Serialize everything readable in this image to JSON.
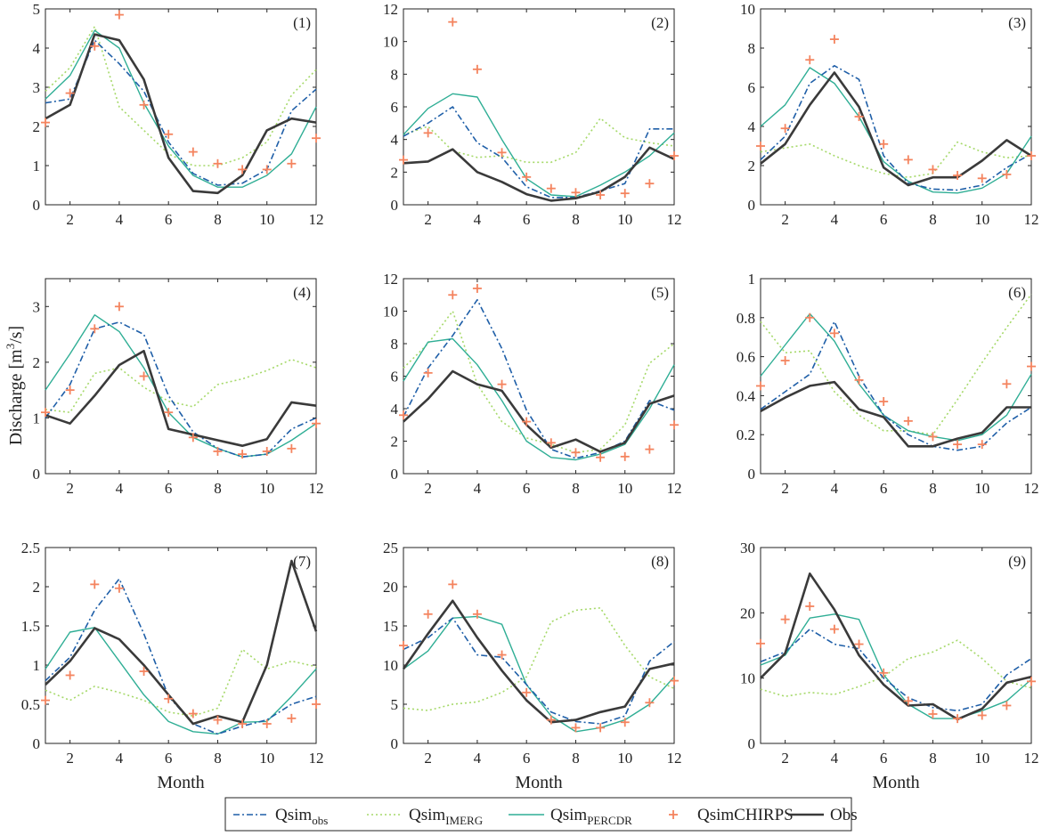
{
  "colors": {
    "Qsim_obs": "#1f5fa8",
    "Qsim_IMERG": "#a6d96a",
    "Qsim_PERCDR": "#2fae95",
    "QsimCHIRPS": "#f4845f",
    "Obs": "#3a3a3a"
  },
  "figure": {
    "ylabel": "Discharge [m",
    "ylabel_sup": "3",
    "ylabel_tail": "/s]",
    "xlabel": "Month"
  },
  "legend": [
    {
      "key": "Qsim_obs",
      "main": "Qsim",
      "sub": "obs",
      "style": "dashdot"
    },
    {
      "key": "Qsim_IMERG",
      "main": "Qsim",
      "sub": "IMERG",
      "style": "dotted"
    },
    {
      "key": "Qsim_PERCDR",
      "main": "Qsim",
      "sub": "PERCDR",
      "style": "solid-thin"
    },
    {
      "key": "QsimCHIRPS",
      "main": "QsimCHIRPS",
      "sub": "",
      "style": "plus"
    },
    {
      "key": "Obs",
      "main": "Obs",
      "sub": "",
      "style": "solid-thick"
    }
  ],
  "chart_data": [
    {
      "type": "line",
      "label": "(1)",
      "x": [
        1,
        2,
        3,
        4,
        5,
        6,
        7,
        8,
        9,
        10,
        11,
        12
      ],
      "ylim": [
        0,
        5
      ],
      "yticks": [
        0,
        1,
        2,
        3,
        4,
        5
      ],
      "ytick_labels": [
        "0",
        "1",
        "2",
        "3",
        "4",
        "5"
      ],
      "xticks": [
        2,
        4,
        6,
        8,
        10,
        12
      ],
      "xlabel": "",
      "ylabel": "",
      "series": [
        {
          "name": "Qsim_obs",
          "values": [
            2.6,
            2.7,
            4.2,
            3.6,
            2.9,
            1.6,
            0.8,
            0.5,
            0.55,
            0.9,
            2.4,
            2.95
          ]
        },
        {
          "name": "Qsim_IMERG",
          "values": [
            2.9,
            3.5,
            4.55,
            2.5,
            1.9,
            1.3,
            1.0,
            1.0,
            1.2,
            1.6,
            2.8,
            3.45
          ]
        },
        {
          "name": "Qsim_PERCDR",
          "values": [
            2.7,
            3.3,
            4.45,
            4.0,
            2.6,
            1.5,
            0.75,
            0.45,
            0.45,
            0.75,
            1.3,
            2.5
          ]
        },
        {
          "name": "QsimCHIRPS",
          "values": [
            2.1,
            2.85,
            4.05,
            4.85,
            2.55,
            1.8,
            1.35,
            1.05,
            0.9,
            0.9,
            1.05,
            1.7
          ]
        },
        {
          "name": "Obs",
          "values": [
            2.2,
            2.55,
            4.35,
            4.2,
            3.2,
            1.2,
            0.35,
            0.3,
            0.75,
            1.9,
            2.2,
            2.1
          ]
        }
      ]
    },
    {
      "type": "line",
      "label": "(2)",
      "x": [
        1,
        2,
        3,
        4,
        5,
        6,
        7,
        8,
        9,
        10,
        11,
        12
      ],
      "ylim": [
        0,
        12
      ],
      "yticks": [
        0,
        2,
        4,
        6,
        8,
        10,
        12
      ],
      "ytick_labels": [
        "0",
        "2",
        "4",
        "6",
        "8",
        "10",
        "12"
      ],
      "xticks": [
        2,
        4,
        6,
        8,
        10,
        12
      ],
      "xlabel": "",
      "ylabel": "",
      "series": [
        {
          "name": "Qsim_obs",
          "values": [
            4.2,
            5.0,
            6.0,
            3.8,
            2.9,
            1.1,
            0.45,
            0.45,
            0.85,
            1.3,
            4.65,
            4.65
          ]
        },
        {
          "name": "Qsim_IMERG",
          "values": [
            4.3,
            4.8,
            3.3,
            2.9,
            3.0,
            2.6,
            2.6,
            3.2,
            5.3,
            4.1,
            3.8,
            3.6
          ]
        },
        {
          "name": "Qsim_PERCDR",
          "values": [
            4.3,
            5.9,
            6.8,
            6.6,
            4.0,
            1.6,
            0.6,
            0.5,
            1.2,
            2.0,
            3.0,
            4.4
          ]
        },
        {
          "name": "QsimCHIRPS",
          "values": [
            2.75,
            4.4,
            11.2,
            8.3,
            3.2,
            1.7,
            1.0,
            0.75,
            0.6,
            0.7,
            1.3,
            3.0
          ]
        },
        {
          "name": "Obs",
          "values": [
            2.55,
            2.65,
            3.4,
            2.0,
            1.4,
            0.65,
            0.25,
            0.4,
            0.8,
            1.7,
            3.5,
            2.8
          ]
        }
      ]
    },
    {
      "type": "line",
      "label": "(3)",
      "x": [
        1,
        2,
        3,
        4,
        5,
        6,
        7,
        8,
        9,
        10,
        11,
        12
      ],
      "ylim": [
        0,
        10
      ],
      "yticks": [
        0,
        2,
        4,
        6,
        8,
        10
      ],
      "ytick_labels": [
        "0",
        "2",
        "4",
        "6",
        "8",
        "10"
      ],
      "xticks": [
        2,
        4,
        6,
        8,
        10,
        12
      ],
      "xlabel": "",
      "ylabel": "",
      "series": [
        {
          "name": "Qsim_obs",
          "values": [
            2.3,
            3.5,
            6.2,
            7.1,
            6.4,
            2.5,
            1.1,
            0.8,
            0.75,
            1.0,
            1.9,
            2.6
          ]
        },
        {
          "name": "Qsim_IMERG",
          "values": [
            2.7,
            2.9,
            3.1,
            2.5,
            2.0,
            1.6,
            1.4,
            1.6,
            3.2,
            2.7,
            2.4,
            2.5
          ]
        },
        {
          "name": "Qsim_PERCDR",
          "values": [
            4.0,
            5.1,
            7.0,
            6.2,
            4.5,
            2.2,
            1.2,
            0.65,
            0.6,
            0.85,
            1.6,
            3.5
          ]
        },
        {
          "name": "QsimCHIRPS",
          "values": [
            3.0,
            3.9,
            7.4,
            8.45,
            4.5,
            3.1,
            2.3,
            1.8,
            1.5,
            1.35,
            1.55,
            2.5
          ]
        },
        {
          "name": "Obs",
          "values": [
            2.1,
            3.1,
            5.1,
            6.75,
            5.0,
            1.9,
            1.0,
            1.4,
            1.4,
            2.25,
            3.3,
            2.5
          ]
        }
      ]
    },
    {
      "type": "line",
      "label": "(4)",
      "x": [
        1,
        2,
        3,
        4,
        5,
        6,
        7,
        8,
        9,
        10,
        11,
        12
      ],
      "ylim": [
        0,
        3.5
      ],
      "yticks": [
        0,
        1,
        2,
        3
      ],
      "ytick_labels": [
        "0",
        "1",
        "2",
        "3"
      ],
      "xticks": [
        2,
        4,
        6,
        8,
        10,
        12
      ],
      "xlabel": "",
      "ylabel": "",
      "series": [
        {
          "name": "Qsim_obs",
          "values": [
            1.0,
            1.6,
            2.6,
            2.72,
            2.5,
            1.4,
            0.75,
            0.45,
            0.3,
            0.35,
            0.8,
            1.0
          ]
        },
        {
          "name": "Qsim_IMERG",
          "values": [
            1.15,
            1.1,
            1.8,
            1.9,
            1.55,
            1.3,
            1.2,
            1.6,
            1.7,
            1.85,
            2.05,
            1.9
          ]
        },
        {
          "name": "Qsim_PERCDR",
          "values": [
            1.5,
            2.15,
            2.85,
            2.55,
            1.9,
            1.1,
            0.65,
            0.45,
            0.3,
            0.35,
            0.6,
            0.9
          ]
        },
        {
          "name": "QsimCHIRPS",
          "values": [
            1.1,
            1.5,
            2.6,
            3.0,
            1.75,
            1.1,
            0.65,
            0.4,
            0.35,
            0.4,
            0.45,
            0.9
          ]
        },
        {
          "name": "Obs",
          "values": [
            1.05,
            0.9,
            1.4,
            1.95,
            2.2,
            0.8,
            0.7,
            0.6,
            0.5,
            0.62,
            1.28,
            1.22
          ]
        }
      ]
    },
    {
      "type": "line",
      "label": "(5)",
      "x": [
        1,
        2,
        3,
        4,
        5,
        6,
        7,
        8,
        9,
        10,
        11,
        12
      ],
      "ylim": [
        0,
        12
      ],
      "yticks": [
        0,
        2,
        4,
        6,
        8,
        10,
        12
      ],
      "ytick_labels": [
        "0",
        "2",
        "4",
        "6",
        "8",
        "10",
        "12"
      ],
      "xticks": [
        2,
        4,
        6,
        8,
        10,
        12
      ],
      "xlabel": "",
      "ylabel": "",
      "series": [
        {
          "name": "Qsim_obs",
          "values": [
            3.5,
            6.5,
            8.5,
            10.7,
            7.7,
            3.9,
            1.5,
            0.95,
            1.3,
            2.0,
            4.5,
            3.9
          ]
        },
        {
          "name": "Qsim_IMERG",
          "values": [
            6.5,
            8.0,
            10.0,
            5.5,
            3.2,
            2.2,
            1.8,
            1.3,
            1.5,
            3.0,
            6.8,
            8.0
          ]
        },
        {
          "name": "Qsim_PERCDR",
          "values": [
            5.7,
            8.1,
            8.3,
            6.7,
            4.5,
            2.0,
            1.0,
            0.85,
            1.2,
            1.8,
            4.0,
            6.7
          ]
        },
        {
          "name": "QsimCHIRPS",
          "values": [
            3.6,
            6.2,
            11.0,
            11.4,
            5.5,
            3.2,
            1.9,
            1.3,
            1.0,
            1.05,
            1.5,
            3.0
          ]
        },
        {
          "name": "Obs",
          "values": [
            3.2,
            4.6,
            6.3,
            5.5,
            5.1,
            3.0,
            1.6,
            2.1,
            1.35,
            1.9,
            4.3,
            4.8
          ]
        }
      ]
    },
    {
      "type": "line",
      "label": "(6)",
      "x": [
        1,
        2,
        3,
        4,
        5,
        6,
        7,
        8,
        9,
        10,
        11,
        12
      ],
      "ylim": [
        0,
        1
      ],
      "yticks": [
        0,
        0.2,
        0.4,
        0.6,
        0.8,
        1
      ],
      "ytick_labels": [
        "0",
        "0.2",
        "0.4",
        "0.6",
        "0.8",
        "1"
      ],
      "xticks": [
        2,
        4,
        6,
        8,
        10,
        12
      ],
      "xlabel": "",
      "ylabel": "",
      "series": [
        {
          "name": "Qsim_obs",
          "values": [
            0.33,
            0.42,
            0.51,
            0.78,
            0.5,
            0.3,
            0.2,
            0.14,
            0.12,
            0.14,
            0.26,
            0.34
          ]
        },
        {
          "name": "Qsim_IMERG",
          "values": [
            0.78,
            0.62,
            0.63,
            0.42,
            0.3,
            0.22,
            0.22,
            0.2,
            0.38,
            0.57,
            0.75,
            0.92
          ]
        },
        {
          "name": "Qsim_PERCDR",
          "values": [
            0.5,
            0.66,
            0.82,
            0.68,
            0.46,
            0.3,
            0.22,
            0.19,
            0.17,
            0.2,
            0.3,
            0.51
          ]
        },
        {
          "name": "QsimCHIRPS",
          "values": [
            0.45,
            0.58,
            0.8,
            0.72,
            0.48,
            0.37,
            0.27,
            0.19,
            0.15,
            0.15,
            0.46,
            0.55
          ]
        },
        {
          "name": "Obs",
          "values": [
            0.32,
            0.39,
            0.45,
            0.47,
            0.33,
            0.29,
            0.14,
            0.14,
            0.18,
            0.21,
            0.34,
            0.34
          ]
        }
      ]
    },
    {
      "type": "line",
      "label": "(7)",
      "x": [
        1,
        2,
        3,
        4,
        5,
        6,
        7,
        8,
        9,
        10,
        11,
        12
      ],
      "ylim": [
        0,
        2.5
      ],
      "yticks": [
        0,
        0.5,
        1,
        1.5,
        2,
        2.5
      ],
      "ytick_labels": [
        "0",
        "0.5",
        "1",
        "1.5",
        "2",
        "2.5"
      ],
      "xticks": [
        2,
        4,
        6,
        8,
        10,
        12
      ],
      "xlabel": "Month",
      "ylabel": "",
      "series": [
        {
          "name": "Qsim_obs",
          "values": [
            0.8,
            1.1,
            1.7,
            2.1,
            1.4,
            0.6,
            0.25,
            0.12,
            0.22,
            0.3,
            0.5,
            0.6
          ]
        },
        {
          "name": "Qsim_IMERG",
          "values": [
            0.68,
            0.55,
            0.73,
            0.65,
            0.55,
            0.4,
            0.35,
            0.45,
            1.2,
            0.95,
            1.05,
            0.98
          ]
        },
        {
          "name": "Qsim_PERCDR",
          "values": [
            0.95,
            1.42,
            1.48,
            1.05,
            0.62,
            0.28,
            0.15,
            0.12,
            0.27,
            0.28,
            0.6,
            0.95
          ]
        },
        {
          "name": "QsimCHIRPS",
          "values": [
            0.55,
            0.87,
            2.03,
            1.98,
            0.92,
            0.57,
            0.38,
            0.3,
            0.25,
            0.25,
            0.32,
            0.5
          ]
        },
        {
          "name": "Obs",
          "values": [
            0.75,
            1.05,
            1.47,
            1.33,
            1.0,
            0.62,
            0.25,
            0.35,
            0.27,
            1.0,
            2.33,
            1.43
          ]
        }
      ]
    },
    {
      "type": "line",
      "label": "(8)",
      "x": [
        1,
        2,
        3,
        4,
        5,
        6,
        7,
        8,
        9,
        10,
        11,
        12
      ],
      "ylim": [
        0,
        25
      ],
      "yticks": [
        0,
        5,
        10,
        15,
        20,
        25
      ],
      "ytick_labels": [
        "0",
        "5",
        "10",
        "15",
        "20",
        "25"
      ],
      "xticks": [
        2,
        4,
        6,
        8,
        10,
        12
      ],
      "xlabel": "Month",
      "ylabel": "",
      "series": [
        {
          "name": "Qsim_obs",
          "values": [
            12.0,
            13.5,
            16.0,
            11.3,
            11.0,
            7.5,
            4.0,
            2.8,
            2.5,
            3.5,
            10.5,
            13.0
          ]
        },
        {
          "name": "Qsim_IMERG",
          "values": [
            4.5,
            4.2,
            5.0,
            5.3,
            6.5,
            8.5,
            15.5,
            17.0,
            17.3,
            12.5,
            8.5,
            7.0
          ]
        },
        {
          "name": "Qsim_PERCDR",
          "values": [
            9.5,
            11.8,
            16.0,
            16.2,
            15.2,
            7.5,
            3.5,
            1.5,
            2.0,
            3.0,
            5.0,
            8.5
          ]
        },
        {
          "name": "QsimCHIRPS",
          "values": [
            12.5,
            16.5,
            20.3,
            16.5,
            11.3,
            6.5,
            3.0,
            2.0,
            2.0,
            2.7,
            5.2,
            8.0
          ]
        },
        {
          "name": "Obs",
          "values": [
            9.5,
            14.0,
            18.2,
            13.5,
            9.3,
            5.5,
            2.7,
            3.0,
            4.0,
            4.7,
            9.5,
            10.2
          ]
        }
      ]
    },
    {
      "type": "line",
      "label": "(9)",
      "x": [
        1,
        2,
        3,
        4,
        5,
        6,
        7,
        8,
        9,
        10,
        11,
        12
      ],
      "ylim": [
        0,
        30
      ],
      "yticks": [
        0,
        10,
        20,
        30
      ],
      "ytick_labels": [
        "0",
        "10",
        "20",
        "30"
      ],
      "xticks": [
        2,
        4,
        6,
        8,
        10,
        12
      ],
      "xlabel": "Month",
      "ylabel": "",
      "series": [
        {
          "name": "Qsim_obs",
          "values": [
            12.5,
            14.0,
            17.5,
            15.2,
            14.5,
            10.0,
            7.0,
            5.5,
            5.0,
            6.0,
            10.5,
            13.0
          ]
        },
        {
          "name": "Qsim_IMERG",
          "values": [
            8.3,
            7.2,
            7.8,
            7.5,
            8.7,
            10.2,
            13.0,
            14.0,
            15.8,
            13.0,
            9.5,
            8.5
          ]
        },
        {
          "name": "Qsim_PERCDR",
          "values": [
            12.0,
            13.5,
            19.2,
            19.8,
            19.0,
            10.5,
            6.0,
            3.8,
            3.8,
            5.0,
            6.5,
            9.8
          ]
        },
        {
          "name": "QsimCHIRPS",
          "values": [
            15.3,
            19.0,
            21.0,
            17.5,
            15.2,
            10.8,
            6.5,
            4.5,
            3.8,
            4.3,
            5.8,
            9.5
          ]
        },
        {
          "name": "Obs",
          "values": [
            10.0,
            13.8,
            26.0,
            20.5,
            13.5,
            9.0,
            5.8,
            6.0,
            3.7,
            5.3,
            9.3,
            10.2
          ]
        }
      ]
    }
  ]
}
